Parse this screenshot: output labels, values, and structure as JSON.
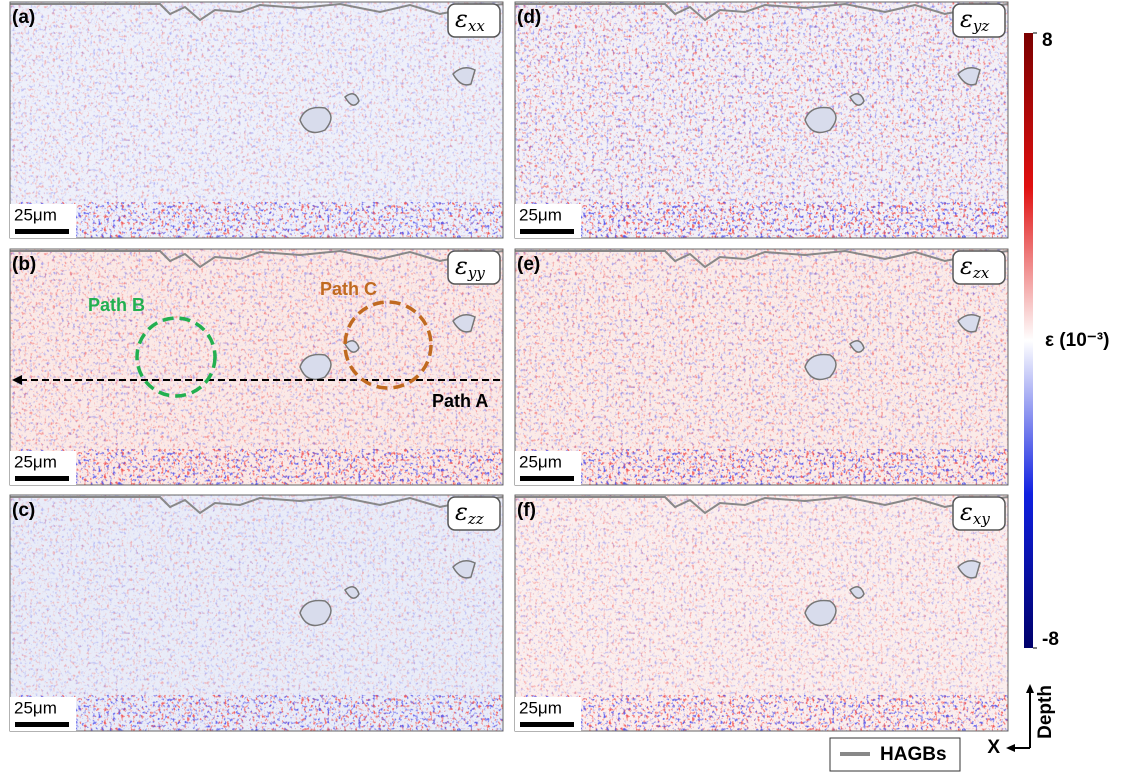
{
  "panels": [
    {
      "label": "(a)",
      "symbol": "ε",
      "subscript": "xx",
      "scale_bar": "25μm"
    },
    {
      "label": "(b)",
      "symbol": "ε",
      "subscript": "yy",
      "scale_bar": "25μm"
    },
    {
      "label": "(c)",
      "symbol": "ε",
      "subscript": "zz",
      "scale_bar": "25μm"
    },
    {
      "label": "(d)",
      "symbol": "ε",
      "subscript": "yz",
      "scale_bar": "25μm"
    },
    {
      "label": "(e)",
      "symbol": "ε",
      "subscript": "zx",
      "scale_bar": "25μm"
    },
    {
      "label": "(f)",
      "symbol": "ε",
      "subscript": "xy",
      "scale_bar": "25μm"
    }
  ],
  "annotations": {
    "path_a": "Path A",
    "path_b": "Path B",
    "path_c": "Path C"
  },
  "colorbar": {
    "max": 8,
    "min": -8,
    "label": "ε (10⁻³)"
  },
  "legend": {
    "label": "HAGBs"
  },
  "axes": {
    "x": "X",
    "depth": "Depth"
  }
}
